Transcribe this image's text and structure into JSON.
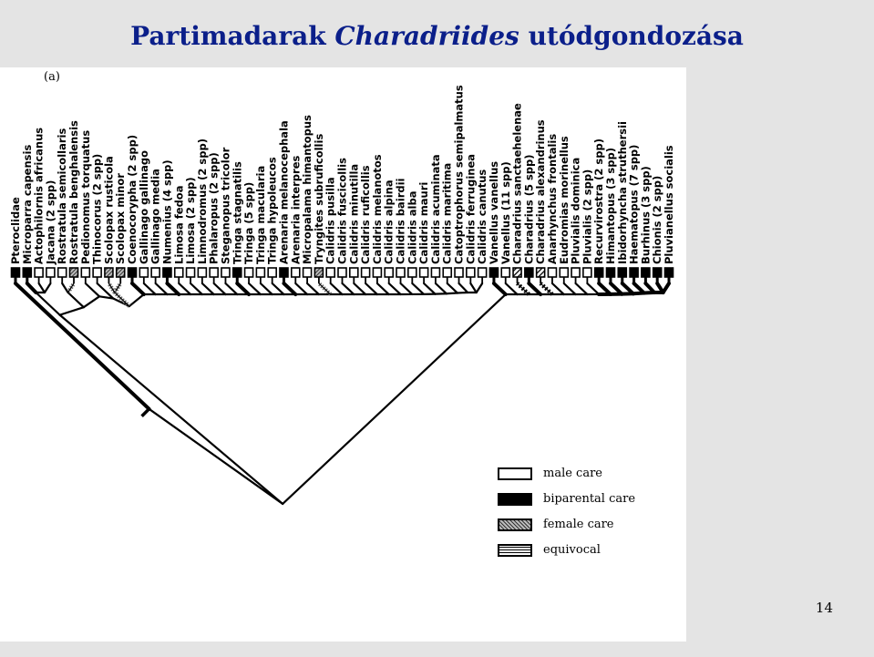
{
  "slide": {
    "title_prefix": "Partimadarak",
    "title_italic": "Charadriides",
    "title_suffix": "utódgondozása",
    "page_number": "14"
  },
  "figure": {
    "panel_label": "(a)",
    "taxa": [
      "Pteroclidae",
      "Microparra capensis",
      "Actophilornis africanus",
      "Jacana (2 spp)",
      "Rostratula semicollaris",
      "Rostratula benghalensis",
      "Pedionomus torquatus",
      "Thinocorus (2 spp)",
      "Scolopax rusticola",
      "Scolopax minor",
      "Coenocorypha (2 spp)",
      "Gallinago gallinago",
      "Gallinago media",
      "Numenius (4 spp)",
      "Limosa fedoa",
      "Limosa (2 spp)",
      "Limnodromus (2 spp)",
      "Phalaropus (2 spp)",
      "Steganopus tricolor",
      "Tringa stagnatilis",
      "Tringa (5 spp)",
      "Tringa macularia",
      "Tringa hypoleucos",
      "Arenaria melanocephala",
      "Arenaria interpres",
      "Micropalama himantopus",
      "Tryngites subruficollis",
      "Calidris pusilla",
      "Calidris fuscicollis",
      "Calidris minutilla",
      "Calidris ruficollis",
      "Calidris melanotos",
      "Calidris alpina",
      "Calidris bairdii",
      "Calidris alba",
      "Calidris mauri",
      "Calidris acuminata",
      "Calidris maritima",
      "Catoptrophorus semipalmatus",
      "Calidris ferruginea",
      "Calidris canutus",
      "Vanellus vanellus",
      "Vanellus (11 spp)",
      "Charadrius sanctaehelenae",
      "Charadrius (5 spp)",
      "Charadrius alexandrinus",
      "Anarhynchus frontalis",
      "Eudromias morinellus",
      "Pluvialis dominica",
      "Pluvialis (2 spp)",
      "Recurvirostra (2 spp)",
      "Himantopus (3 spp)",
      "Ibidorhyncha struthersii",
      "Haematopus (7 spp)",
      "Burhinus (3 spp)",
      "Chionis (2 spp)",
      "Pluvianellus socialis"
    ],
    "care_states": [
      "biparental",
      "biparental",
      "male",
      "male",
      "male",
      "female",
      "male",
      "male",
      "female",
      "female",
      "biparental",
      "male",
      "male",
      "biparental",
      "male",
      "male",
      "male",
      "male",
      "male",
      "biparental",
      "male",
      "male",
      "male",
      "biparental",
      "male",
      "male",
      "female",
      "male",
      "male",
      "male",
      "male",
      "male",
      "male",
      "male",
      "male",
      "male",
      "male",
      "male",
      "male",
      "male",
      "male",
      "biparental",
      "male",
      "equivocal",
      "biparental",
      "equivocal",
      "male",
      "male",
      "male",
      "male",
      "biparental",
      "biparental",
      "biparental",
      "biparental",
      "biparental",
      "biparental",
      "biparental"
    ],
    "legend": [
      {
        "key": "male",
        "label": "male care"
      },
      {
        "key": "biparental",
        "label": "biparental care"
      },
      {
        "key": "female",
        "label": "female care"
      },
      {
        "key": "equivocal",
        "label": "equivocal"
      }
    ]
  }
}
